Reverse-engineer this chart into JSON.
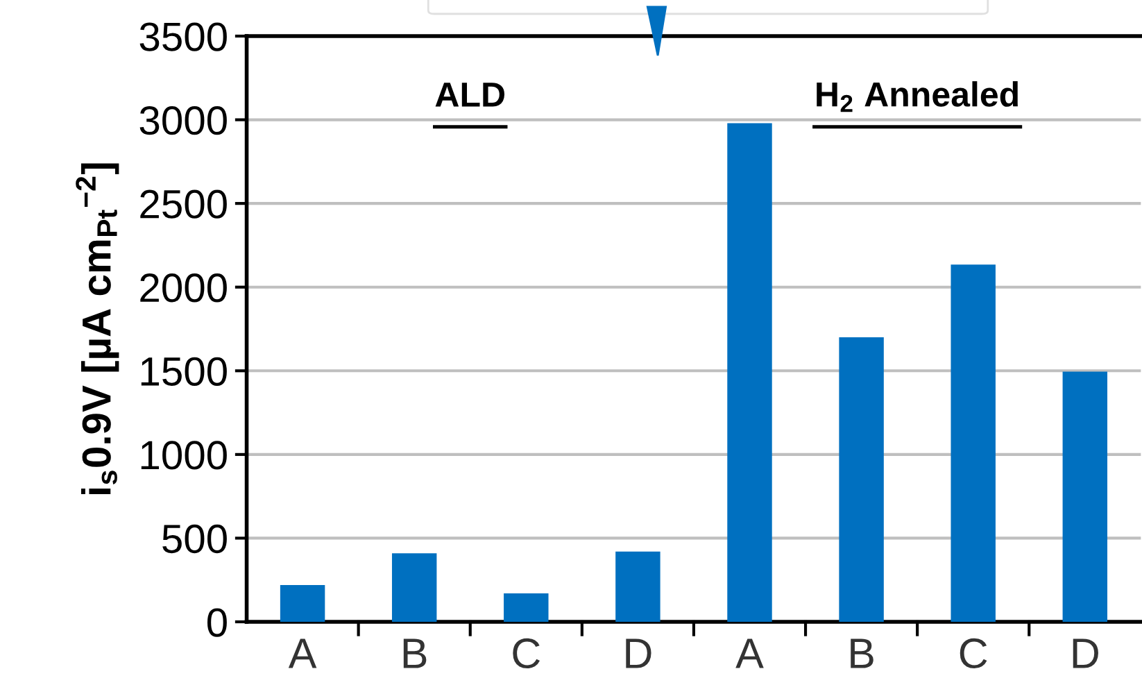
{
  "chart_data": {
    "type": "bar",
    "ylabel": "i$_{s}$0.9V [µA cm$_{Pt}$$^{−2}$]",
    "categories": [
      "A",
      "B",
      "C",
      "D",
      "A",
      "B",
      "C",
      "D"
    ],
    "values": [
      220,
      410,
      170,
      420,
      2980,
      1700,
      2135,
      1495
    ],
    "color": "#0070c0",
    "ylim": [
      0,
      3500
    ],
    "yticks": [
      0,
      500,
      1000,
      1500,
      2000,
      2500,
      3000,
      3500
    ],
    "grid": "y",
    "annotations": [
      "ALD",
      "H$_{2}$ Annealed"
    ]
  }
}
